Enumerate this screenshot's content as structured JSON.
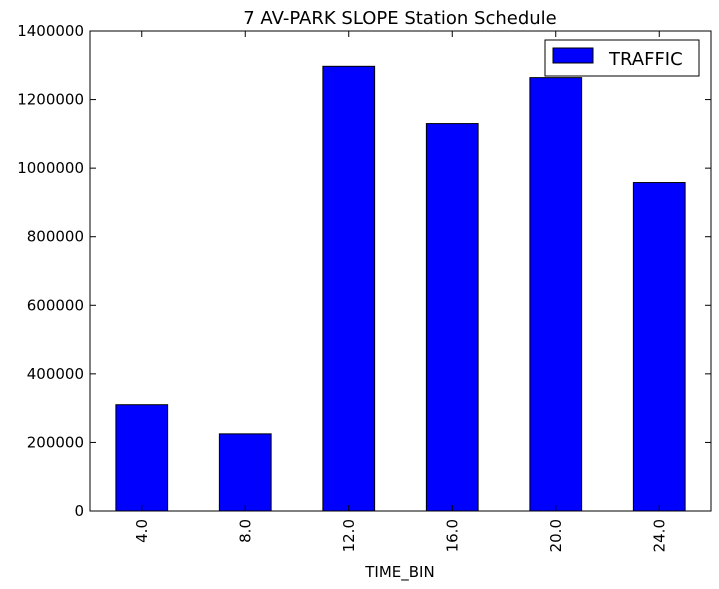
{
  "chart_data": {
    "type": "bar",
    "title": "7 AV-PARK SLOPE Station Schedule",
    "xlabel": "TIME_BIN",
    "ylabel": "",
    "categories": [
      "4.0",
      "8.0",
      "12.0",
      "16.0",
      "20.0",
      "24.0"
    ],
    "series": [
      {
        "name": "TRAFFIC",
        "values": [
          310000,
          225000,
          1297000,
          1130000,
          1264000,
          958000
        ],
        "color": "#0000ff"
      }
    ],
    "ylim": [
      0,
      1400000
    ],
    "yticks": [
      "0",
      "200000",
      "400000",
      "600000",
      "800000",
      "1000000",
      "1200000",
      "1400000"
    ],
    "grid": false,
    "legend_position": "top-right"
  }
}
